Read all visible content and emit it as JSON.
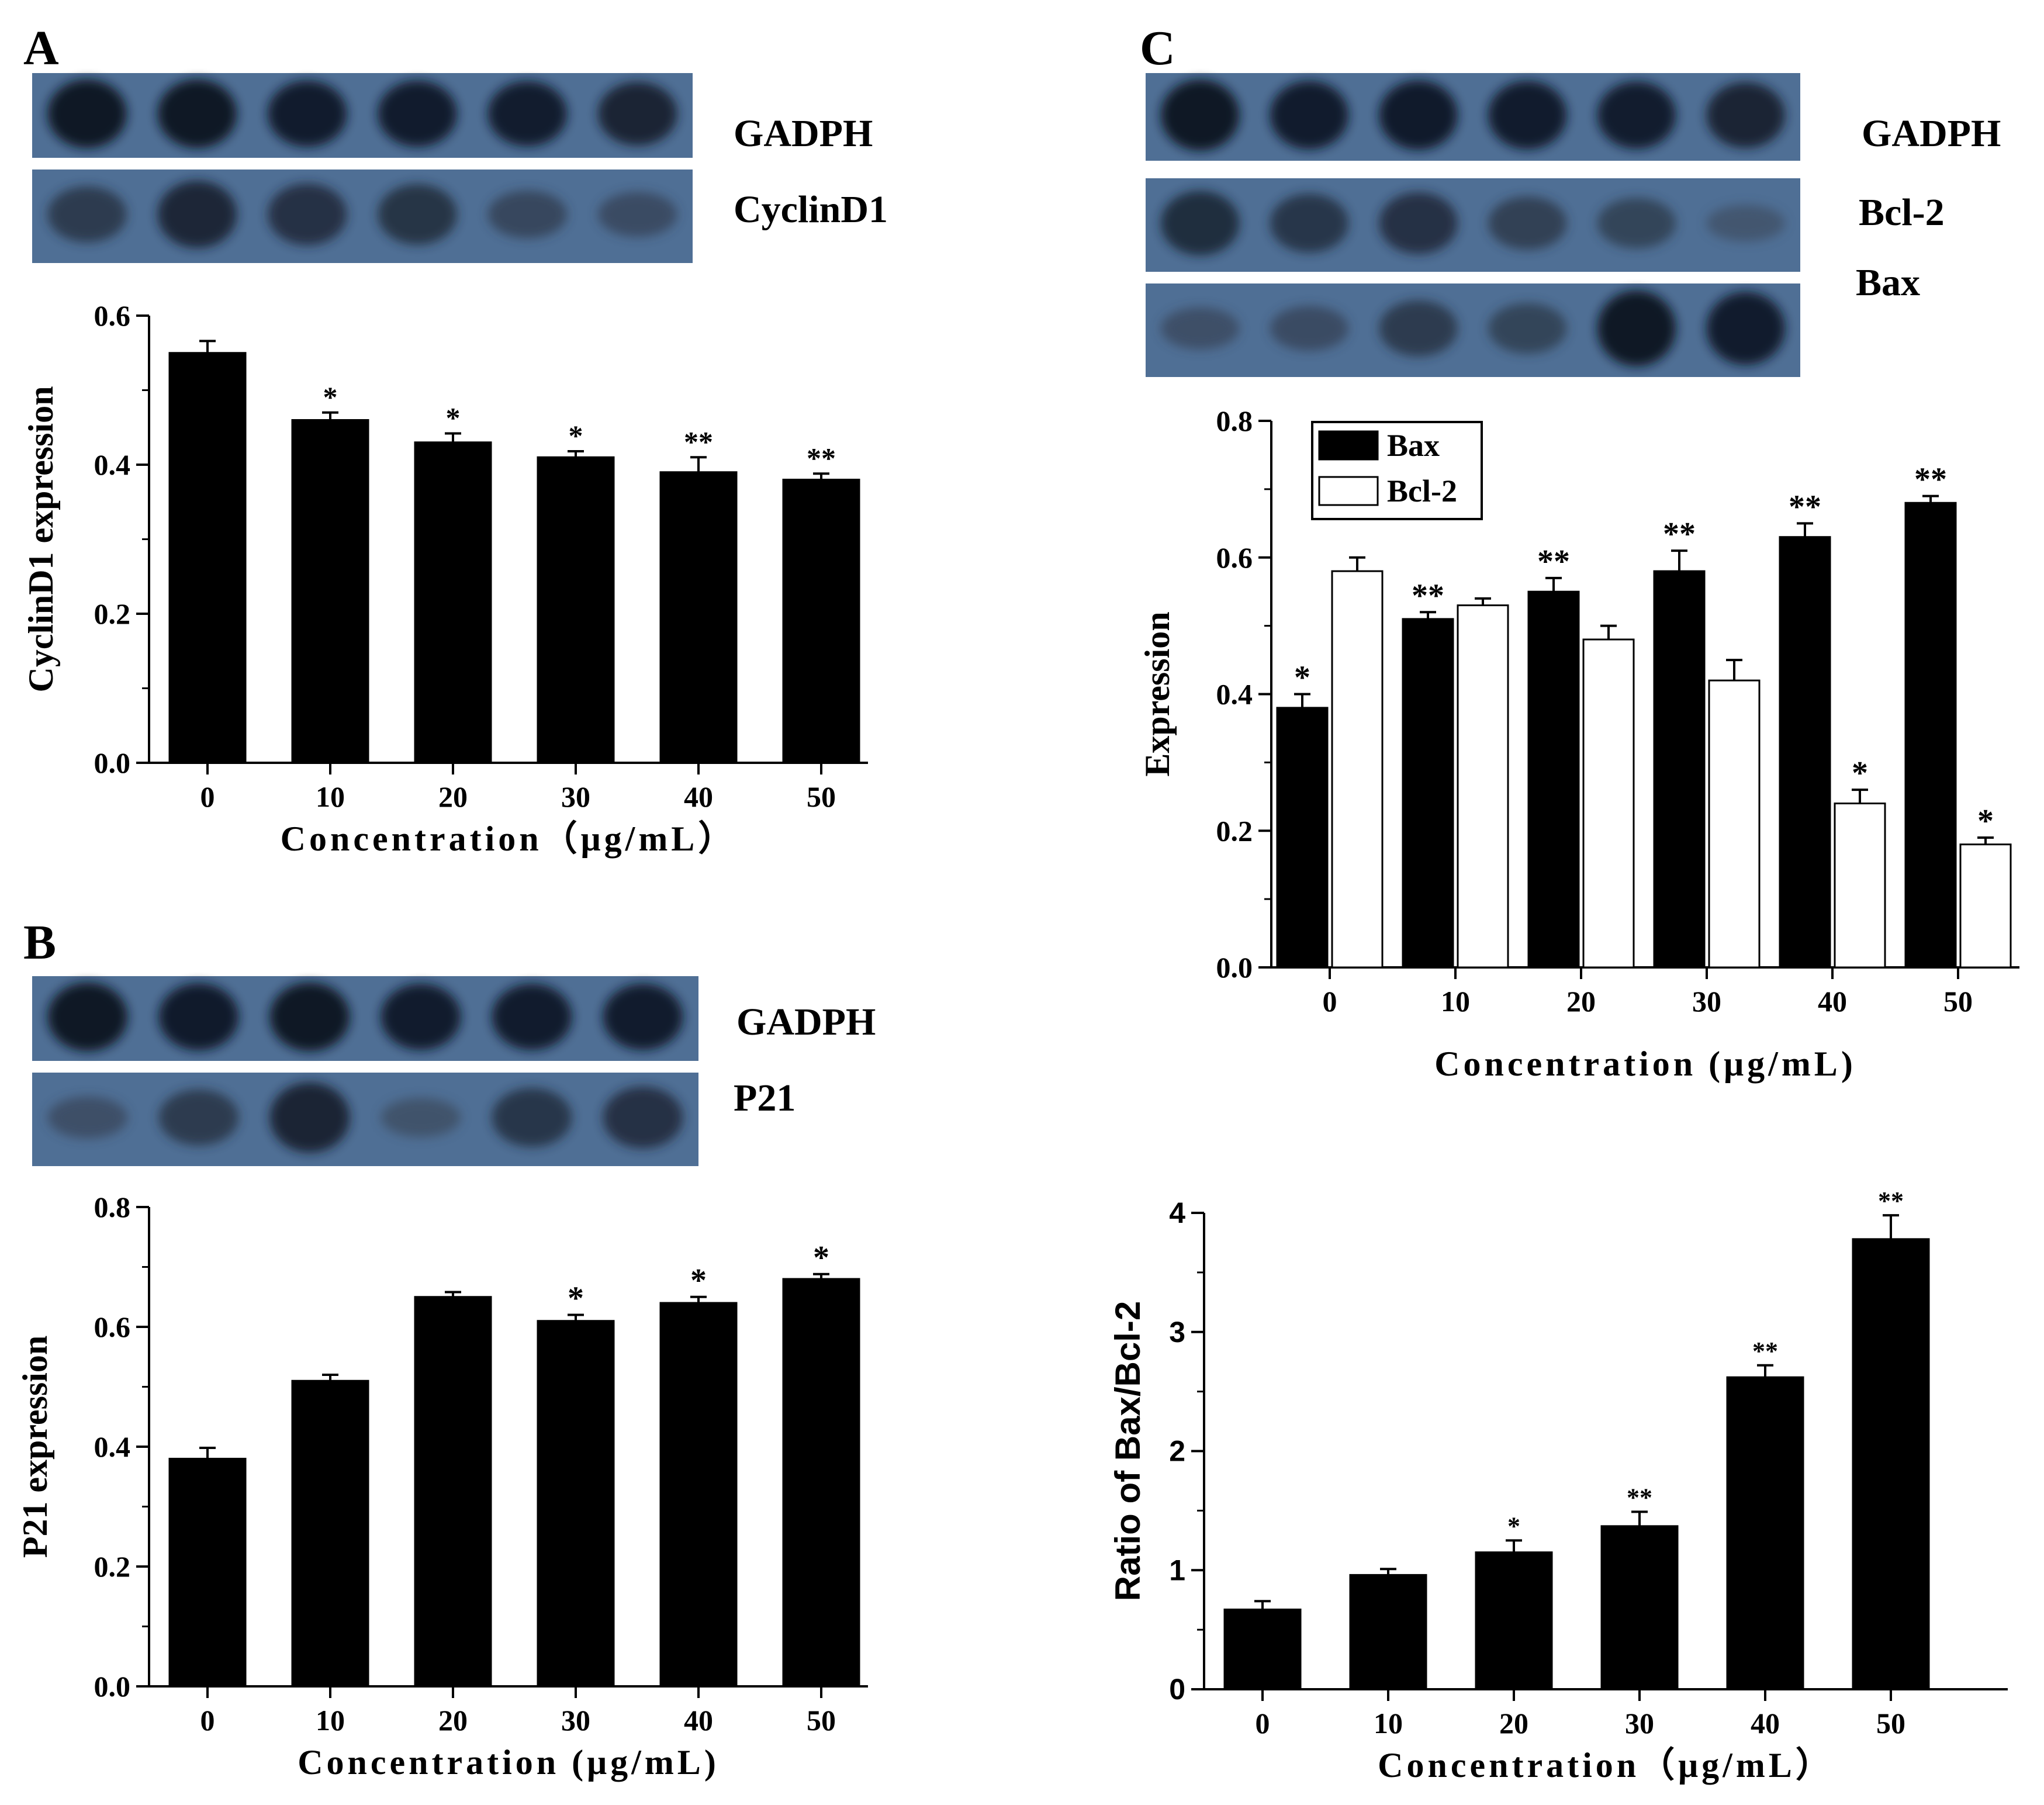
{
  "panels": [
    {
      "id": "A",
      "label": "A",
      "blots": [
        {
          "label": "GADPH",
          "intensities": [
            0.95,
            0.95,
            0.9,
            0.9,
            0.88,
            0.85
          ]
        },
        {
          "label": "CyclinD1",
          "intensities": [
            0.6,
            0.8,
            0.7,
            0.68,
            0.45,
            0.4
          ]
        }
      ]
    },
    {
      "id": "B",
      "label": "B",
      "blots": [
        {
          "label": "GADPH",
          "intensities": [
            0.95,
            0.92,
            0.95,
            0.9,
            0.9,
            0.9
          ]
        },
        {
          "label": "P21",
          "intensities": [
            0.35,
            0.6,
            0.85,
            0.3,
            0.65,
            0.7
          ]
        }
      ]
    },
    {
      "id": "C",
      "label": "C",
      "blots": [
        {
          "label": "GADPH",
          "intensities": [
            0.95,
            0.9,
            0.92,
            0.9,
            0.88,
            0.85
          ]
        },
        {
          "label": "Bcl-2",
          "intensities": [
            0.75,
            0.65,
            0.7,
            0.55,
            0.5,
            0.25
          ]
        },
        {
          "label": "Bax",
          "intensities": [
            0.35,
            0.4,
            0.6,
            0.5,
            0.95,
            0.9
          ]
        }
      ]
    }
  ],
  "chart_data": [
    {
      "id": "chartA",
      "type": "bar",
      "categories": [
        "0",
        "10",
        "20",
        "30",
        "40",
        "50"
      ],
      "series": [
        {
          "values": [
            0.55,
            0.46,
            0.43,
            0.41,
            0.39,
            0.38
          ],
          "errors": [
            0.016,
            0.01,
            0.012,
            0.008,
            0.02,
            0.008
          ],
          "marks": [
            "",
            "*",
            "*",
            "*",
            "**",
            "**"
          ]
        }
      ],
      "ylim": [
        0,
        0.6
      ],
      "yticks": [
        "0.0",
        "0.2",
        "0.4",
        "0.6"
      ],
      "xlabel": "Concentration（μg/mL）",
      "ylabel": "CyclinD1 expression",
      "bar_color": "#000000"
    },
    {
      "id": "chartB",
      "type": "bar",
      "categories": [
        "0",
        "10",
        "20",
        "30",
        "40",
        "50"
      ],
      "series": [
        {
          "values": [
            0.38,
            0.51,
            0.65,
            0.61,
            0.64,
            0.68
          ],
          "errors": [
            0.018,
            0.01,
            0.008,
            0.01,
            0.01,
            0.008
          ],
          "marks": [
            "",
            "",
            "",
            "*",
            "*",
            "*"
          ]
        }
      ],
      "ylim": [
        0,
        0.8
      ],
      "yticks": [
        "0.0",
        "0.2",
        "0.4",
        "0.6",
        "0.8"
      ],
      "xlabel": "Concentration (μg/mL)",
      "ylabel": "P21 expression",
      "bar_color": "#000000"
    },
    {
      "id": "chartC1",
      "type": "bar",
      "categories": [
        "0",
        "10",
        "20",
        "30",
        "40",
        "50"
      ],
      "series": [
        {
          "name": "Bax",
          "color": "#000000",
          "values": [
            0.38,
            0.51,
            0.55,
            0.58,
            0.63,
            0.68
          ],
          "errors": [
            0.02,
            0.01,
            0.02,
            0.03,
            0.02,
            0.01
          ],
          "marks": [
            "*",
            "**",
            "**",
            "**",
            "**",
            "**"
          ]
        },
        {
          "name": "Bcl-2",
          "color": "#ffffff",
          "values": [
            0.58,
            0.53,
            0.48,
            0.42,
            0.24,
            0.18
          ],
          "errors": [
            0.02,
            0.01,
            0.02,
            0.03,
            0.02,
            0.01
          ],
          "marks": [
            "",
            "",
            "",
            "",
            "*",
            "*"
          ]
        }
      ],
      "ylim": [
        0,
        0.8
      ],
      "yticks": [
        "0.0",
        "0.2",
        "0.4",
        "0.6",
        "0.8"
      ],
      "xlabel": "Concentration (μg/mL)",
      "ylabel": "Expression",
      "legend": "top-left"
    },
    {
      "id": "chartC2",
      "type": "bar",
      "categories": [
        "0",
        "10",
        "20",
        "30",
        "40",
        "50"
      ],
      "series": [
        {
          "values": [
            0.67,
            0.96,
            1.15,
            1.37,
            2.62,
            3.78
          ],
          "errors": [
            0.07,
            0.05,
            0.1,
            0.12,
            0.1,
            0.2
          ],
          "marks": [
            "",
            "",
            "*",
            "**",
            "**",
            "**"
          ]
        }
      ],
      "ylim": [
        0,
        4
      ],
      "yticks": [
        "0",
        "1",
        "2",
        "3",
        "4"
      ],
      "xlabel": "Concentration（μg/mL）",
      "ylabel": "Ratio of Bax/Bcl-2",
      "bar_color": "#000000"
    }
  ]
}
